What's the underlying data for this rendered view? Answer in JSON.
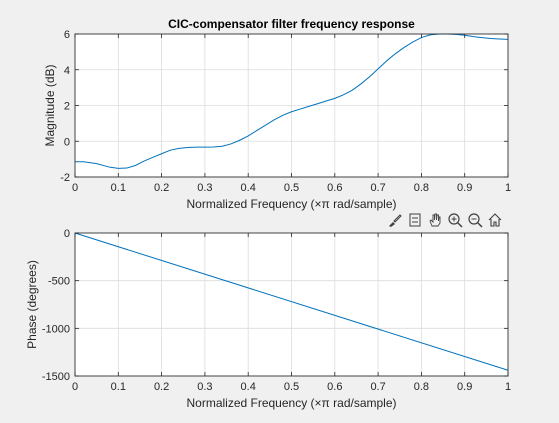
{
  "toolbar": {
    "icons": [
      "brush-icon",
      "legend-icon",
      "pan-icon",
      "zoom-in-icon",
      "zoom-out-icon",
      "home-icon"
    ]
  },
  "chart_data": [
    {
      "type": "line",
      "title": "CIC-compensator filter frequency response",
      "xlabel": "Normalized Frequency  (×π rad/sample)",
      "ylabel": "Magnitude (dB)",
      "xlim": [
        0,
        1
      ],
      "ylim": [
        -2,
        6
      ],
      "xticks": [
        0,
        0.1,
        0.2,
        0.3,
        0.4,
        0.5,
        0.6,
        0.7,
        0.8,
        0.9,
        1
      ],
      "yticks": [
        -2,
        0,
        2,
        4,
        6
      ],
      "grid": true,
      "series": [
        {
          "color": "#0072bd",
          "x": [
            0,
            0.02,
            0.05,
            0.08,
            0.1,
            0.12,
            0.14,
            0.16,
            0.18,
            0.2,
            0.22,
            0.24,
            0.26,
            0.28,
            0.3,
            0.32,
            0.34,
            0.36,
            0.38,
            0.4,
            0.42,
            0.44,
            0.46,
            0.48,
            0.5,
            0.52,
            0.54,
            0.56,
            0.58,
            0.6,
            0.62,
            0.64,
            0.66,
            0.68,
            0.7,
            0.72,
            0.74,
            0.76,
            0.78,
            0.8,
            0.82,
            0.84,
            0.86,
            0.88,
            0.9,
            0.92,
            0.94,
            0.96,
            0.98,
            1
          ],
          "y": [
            -1.15,
            -1.15,
            -1.25,
            -1.45,
            -1.52,
            -1.5,
            -1.35,
            -1.1,
            -0.9,
            -0.7,
            -0.5,
            -0.4,
            -0.35,
            -0.33,
            -0.33,
            -0.32,
            -0.28,
            -0.15,
            0.05,
            0.3,
            0.6,
            0.9,
            1.2,
            1.45,
            1.65,
            1.8,
            1.95,
            2.1,
            2.25,
            2.4,
            2.6,
            2.85,
            3.2,
            3.6,
            4.05,
            4.5,
            4.9,
            5.25,
            5.55,
            5.8,
            5.95,
            6.0,
            6.0,
            5.98,
            5.93,
            5.85,
            5.8,
            5.75,
            5.72,
            5.7
          ]
        }
      ]
    },
    {
      "type": "line",
      "title": "",
      "xlabel": "Normalized Frequency  (×π rad/sample)",
      "ylabel": "Phase (degrees)",
      "xlim": [
        0,
        1
      ],
      "ylim": [
        -1500,
        0
      ],
      "xticks": [
        0,
        0.1,
        0.2,
        0.3,
        0.4,
        0.5,
        0.6,
        0.7,
        0.8,
        0.9,
        1
      ],
      "yticks": [
        -1500,
        -1000,
        -500,
        0
      ],
      "grid": true,
      "series": [
        {
          "color": "#0072bd",
          "x": [
            0,
            1
          ],
          "y": [
            0,
            -1440
          ]
        }
      ]
    }
  ]
}
